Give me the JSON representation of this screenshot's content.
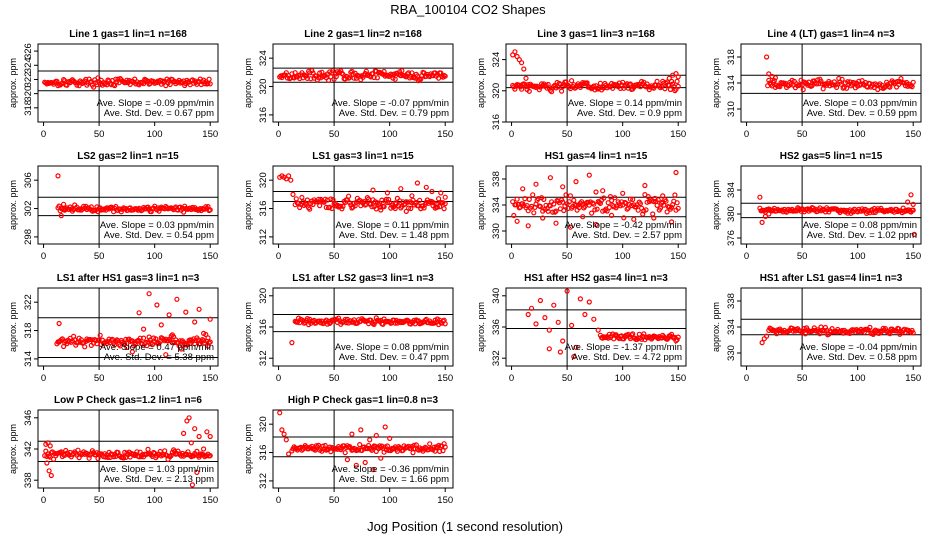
{
  "figure": {
    "title": "RBA_100104  CO2 Shapes",
    "xlabel": "Jog Position (1 second resolution)",
    "ylabel": "approx. ppm",
    "slope_prefix": "Ave. Slope = ",
    "slope_unit": " ppm/min",
    "std_prefix": "Ave. Std. Dev. = ",
    "std_unit": " ppm",
    "point_color": "#ff0000",
    "line_color": "#000000"
  },
  "chart_data": [
    {
      "type": "scatter",
      "title": "Line 1 gas=1 lin=1 n=168",
      "ylim": [
        316,
        327
      ],
      "yticks": [
        318,
        320,
        322,
        324,
        326
      ],
      "xticks": [
        0,
        50,
        100,
        150
      ],
      "hlines": [
        320.4,
        323.2
      ],
      "vline": 50,
      "slope": "-0.09",
      "std": "0.67",
      "x_start": 1,
      "x_end": 150,
      "n": 150,
      "base": 321.6,
      "noise": 0.25,
      "head": [],
      "spikes": []
    },
    {
      "type": "scatter",
      "title": "Line 2 gas=1 lin=2 n=168",
      "ylim": [
        315,
        326
      ],
      "yticks": [
        316,
        320,
        324
      ],
      "xticks": [
        0,
        50,
        100,
        150
      ],
      "hlines": [
        320.6,
        322.6
      ],
      "vline": 50,
      "slope": "-0.07",
      "std": "0.79",
      "x_start": 1,
      "x_end": 150,
      "n": 150,
      "base": 321.6,
      "noise": 0.3,
      "head": [],
      "spikes": []
    },
    {
      "type": "scatter",
      "title": "Line 3 gas=1 lin=3 n=168",
      "ylim": [
        316,
        326
      ],
      "yticks": [
        316,
        320,
        324
      ],
      "xticks": [
        0,
        50,
        100,
        150
      ],
      "hlines": [
        320.4,
        322.0
      ],
      "vline": 50,
      "slope": "0.14",
      "std": "0.9",
      "x_start": 1,
      "x_end": 150,
      "n": 150,
      "base": 320.6,
      "noise": 0.3,
      "head": [
        [
          1,
          324.6
        ],
        [
          3,
          325.0
        ],
        [
          5,
          324.4
        ],
        [
          7,
          324.0
        ],
        [
          9,
          323.6
        ],
        [
          11,
          322.8
        ],
        [
          13,
          321.6
        ],
        [
          15,
          320.8
        ]
      ],
      "spikes": [
        [
          142,
          321.6
        ],
        [
          145,
          322.0
        ],
        [
          148,
          322.2
        ],
        [
          150,
          321.8
        ]
      ]
    },
    {
      "type": "scatter",
      "title": "Line 4 (LT) gas=1 lin=4 n=3",
      "ylim": [
        308,
        320
      ],
      "yticks": [
        310,
        314,
        318
      ],
      "xticks": [
        0,
        50,
        100,
        150
      ],
      "hlines": [
        312.4,
        315.2
      ],
      "vline": 50,
      "slope": "0.03",
      "std": "0.59",
      "x_start": 19,
      "x_end": 150,
      "n": 132,
      "base": 313.8,
      "noise": 0.35,
      "head": [
        [
          18,
          318.0
        ],
        [
          20,
          315.4
        ],
        [
          23,
          315.0
        ],
        [
          26,
          314.8
        ]
      ],
      "spikes": []
    },
    {
      "type": "scatter",
      "title": "LS2 gas=2 lin=1 n=15",
      "ylim": [
        297,
        308
      ],
      "yticks": [
        298,
        302,
        306
      ],
      "xticks": [
        0,
        50,
        100,
        150
      ],
      "hlines": [
        301.0,
        303.6
      ],
      "vline": 50,
      "slope": "0.03",
      "std": "0.54",
      "x_start": 13,
      "x_end": 150,
      "n": 138,
      "base": 302.0,
      "noise": 0.2,
      "head": [
        [
          13,
          306.6
        ],
        [
          16,
          301.0
        ],
        [
          18,
          302.6
        ]
      ],
      "spikes": []
    },
    {
      "type": "scatter",
      "title": "LS1 gas=3 lin=1 n=15",
      "ylim": [
        311,
        322
      ],
      "yticks": [
        312,
        316,
        320
      ],
      "xticks": [
        0,
        50,
        100,
        150
      ],
      "hlines": [
        317.0,
        318.4
      ],
      "vline": 50,
      "slope": "0.11",
      "std": "1.48",
      "x_start": 15,
      "x_end": 150,
      "n": 136,
      "base": 316.7,
      "noise": 0.4,
      "head": [
        [
          1,
          320.4
        ],
        [
          3,
          320.6
        ],
        [
          5,
          320.4
        ],
        [
          7,
          320.2
        ],
        [
          9,
          320.6
        ],
        [
          11,
          320.0
        ],
        [
          13,
          318.0
        ]
      ],
      "spikes": [
        [
          85,
          318.6
        ],
        [
          92,
          315.8
        ],
        [
          98,
          318.2
        ],
        [
          105,
          316.0
        ],
        [
          110,
          318.8
        ],
        [
          115,
          315.6
        ],
        [
          120,
          317.8
        ],
        [
          125,
          319.6
        ],
        [
          128,
          316.0
        ],
        [
          133,
          319.0
        ],
        [
          138,
          318.4
        ],
        [
          142,
          316.2
        ],
        [
          146,
          318.2
        ],
        [
          150,
          317.6
        ]
      ]
    },
    {
      "type": "scatter",
      "title": "HS1 gas=4 lin=1 n=15",
      "ylim": [
        328,
        340
      ],
      "yticks": [
        330,
        334,
        338
      ],
      "xticks": [
        0,
        50,
        100,
        150
      ],
      "hlines": [
        332.2,
        335.2
      ],
      "vline": 50,
      "slope": "-0.42",
      "std": "2.57",
      "x_start": 1,
      "x_end": 150,
      "n": 150,
      "base": 334.0,
      "noise": 0.7,
      "head": [],
      "spikes": [
        [
          5,
          331.5
        ],
        [
          10,
          336.5
        ],
        [
          15,
          330.8
        ],
        [
          22,
          337.2
        ],
        [
          28,
          332.0
        ],
        [
          35,
          338.2
        ],
        [
          40,
          331.2
        ],
        [
          46,
          336.8
        ],
        [
          53,
          330.6
        ],
        [
          58,
          337.6
        ],
        [
          64,
          332.2
        ],
        [
          70,
          338.6
        ],
        [
          76,
          331.0
        ],
        [
          82,
          336.2
        ],
        [
          90,
          332.4
        ],
        [
          100,
          335.8
        ],
        [
          110,
          331.8
        ],
        [
          120,
          337.0
        ],
        [
          128,
          332.0
        ],
        [
          136,
          335.4
        ],
        [
          144,
          331.4
        ],
        [
          148,
          339.0
        ]
      ]
    },
    {
      "type": "scatter",
      "title": "HS2 gas=5 lin=1 n=15",
      "ylim": [
        375,
        388
      ],
      "yticks": [
        376,
        380,
        384
      ],
      "xticks": [
        0,
        50,
        100,
        150
      ],
      "hlines": [
        379.4,
        381.8
      ],
      "vline": 50,
      "slope": "0.08",
      "std": "1.02",
      "x_start": 12,
      "x_end": 150,
      "n": 139,
      "base": 380.6,
      "noise": 0.2,
      "head": [
        [
          12,
          382.8
        ],
        [
          14,
          378.6
        ],
        [
          17,
          379.6
        ],
        [
          20,
          380.0
        ]
      ],
      "spikes": [
        [
          145,
          382.0
        ],
        [
          148,
          383.2
        ],
        [
          150,
          381.6
        ],
        [
          151,
          376.6
        ]
      ]
    },
    {
      "type": "scatter",
      "title": "LS1 after HS1 gas=3 lin=1 n=3",
      "ylim": [
        313,
        324
      ],
      "yticks": [
        314,
        318,
        322
      ],
      "xticks": [
        0,
        50,
        100,
        150
      ],
      "hlines": [
        314.2,
        319.8
      ],
      "vline": 50,
      "slope": "0.47",
      "std": "5.38",
      "x_start": 12,
      "x_end": 150,
      "n": 139,
      "base": 316.5,
      "noise": 0.35,
      "head": [
        [
          14,
          319.0
        ]
      ],
      "spikes": [
        [
          80,
          315.0
        ],
        [
          86,
          320.5
        ],
        [
          90,
          318.2
        ],
        [
          95,
          323.2
        ],
        [
          98,
          316.0
        ],
        [
          102,
          321.6
        ],
        [
          106,
          318.8
        ],
        [
          110,
          314.6
        ],
        [
          113,
          320.2
        ],
        [
          116,
          317.4
        ],
        [
          120,
          322.4
        ],
        [
          124,
          315.4
        ],
        [
          128,
          320.6
        ],
        [
          132,
          316.2
        ],
        [
          136,
          319.2
        ],
        [
          140,
          321.0
        ],
        [
          144,
          317.6
        ],
        [
          148,
          315.8
        ],
        [
          150,
          319.6
        ]
      ]
    },
    {
      "type": "scatter",
      "title": "LS1 after LS2 gas=3 lin=1 n=3",
      "ylim": [
        311,
        321
      ],
      "yticks": [
        312,
        316,
        320
      ],
      "xticks": [
        0,
        50,
        100,
        150
      ],
      "hlines": [
        315.4,
        317.6
      ],
      "vline": 50,
      "slope": "0.08",
      "std": "0.47",
      "x_start": 15,
      "x_end": 150,
      "n": 136,
      "base": 316.7,
      "noise": 0.2,
      "head": [
        [
          12,
          314.0
        ]
      ],
      "spikes": []
    },
    {
      "type": "scatter",
      "title": "HS1 after HS2 gas=4 lin=1 n=3",
      "ylim": [
        331,
        341
      ],
      "yticks": [
        332,
        336,
        340
      ],
      "xticks": [
        0,
        50,
        100,
        150
      ],
      "hlines": [
        335.8,
        338.2
      ],
      "vline": 50,
      "slope": "-1.37",
      "std": "4.72",
      "x_start": 80,
      "x_end": 150,
      "n": 71,
      "base": 334.7,
      "noise": 0.2,
      "head": [
        [
          15,
          337.6
        ],
        [
          18,
          338.4
        ],
        [
          22,
          336.4
        ],
        [
          26,
          339.4
        ],
        [
          30,
          337.2
        ],
        [
          34,
          335.6
        ],
        [
          38,
          338.8
        ],
        [
          42,
          336.6
        ],
        [
          46,
          334.2
        ],
        [
          50,
          340.6
        ],
        [
          54,
          336.2
        ],
        [
          58,
          333.4
        ],
        [
          62,
          339.6
        ],
        [
          66,
          337.6
        ],
        [
          70,
          339.2
        ],
        [
          74,
          337.0
        ],
        [
          78,
          335.6
        ],
        [
          44,
          332.8
        ],
        [
          56,
          332.2
        ],
        [
          34,
          333.2
        ]
      ],
      "spikes": []
    },
    {
      "type": "scatter",
      "title": "HS1 after LS1 gas=4 lin=1 n=3",
      "ylim": [
        328,
        340
      ],
      "yticks": [
        330,
        334,
        338
      ],
      "xticks": [
        0,
        50,
        100,
        150
      ],
      "hlines": [
        332.8,
        335.2
      ],
      "vline": 50,
      "slope": "-0.04",
      "std": "0.58",
      "x_start": 20,
      "x_end": 150,
      "n": 131,
      "base": 333.4,
      "noise": 0.25,
      "head": [
        [
          14,
          331.6
        ],
        [
          16,
          332.2
        ],
        [
          18,
          332.6
        ]
      ],
      "spikes": []
    },
    {
      "type": "scatter",
      "title": "Low P Check gas=1.2 lin=1 n=6",
      "ylim": [
        337,
        347
      ],
      "yticks": [
        338,
        342,
        346
      ],
      "xticks": [
        0,
        50,
        100,
        150
      ],
      "hlines": [
        340.4,
        343.0
      ],
      "vline": 50,
      "slope": "1.03",
      "std": "2.13",
      "x_start": 1,
      "x_end": 150,
      "n": 150,
      "base": 341.3,
      "noise": 0.25,
      "head": [
        [
          2,
          342.6
        ],
        [
          4,
          342.8
        ],
        [
          6,
          342.4
        ],
        [
          3,
          340.2
        ],
        [
          5,
          339.2
        ],
        [
          7,
          338.6
        ]
      ],
      "spikes": [
        [
          126,
          344.0
        ],
        [
          129,
          345.6
        ],
        [
          131,
          346.0
        ],
        [
          133,
          342.8
        ],
        [
          136,
          344.6
        ],
        [
          138,
          339.0
        ],
        [
          140,
          343.6
        ],
        [
          144,
          342.0
        ],
        [
          147,
          344.2
        ],
        [
          150,
          343.6
        ],
        [
          134,
          337.4
        ]
      ]
    },
    {
      "type": "scatter",
      "title": "High P Check gas=1 lin=0.8 n=3",
      "ylim": [
        311,
        322
      ],
      "yticks": [
        312,
        316,
        320
      ],
      "xticks": [
        0,
        50,
        100,
        150
      ],
      "hlines": [
        315.4,
        318.2
      ],
      "vline": 50,
      "slope": "-0.36",
      "std": "1.66",
      "x_start": 12,
      "x_end": 150,
      "n": 139,
      "base": 316.6,
      "noise": 0.25,
      "head": [
        [
          1,
          321.6
        ],
        [
          3,
          319.2
        ],
        [
          5,
          318.6
        ],
        [
          7,
          317.8
        ],
        [
          9,
          315.8
        ]
      ],
      "spikes": [
        [
          62,
          315.0
        ],
        [
          66,
          318.6
        ],
        [
          70,
          314.2
        ],
        [
          74,
          319.2
        ],
        [
          78,
          314.6
        ],
        [
          82,
          317.8
        ],
        [
          85,
          313.6
        ],
        [
          88,
          318.4
        ],
        [
          92,
          315.2
        ],
        [
          96,
          319.6
        ],
        [
          100,
          318.0
        ]
      ]
    }
  ]
}
